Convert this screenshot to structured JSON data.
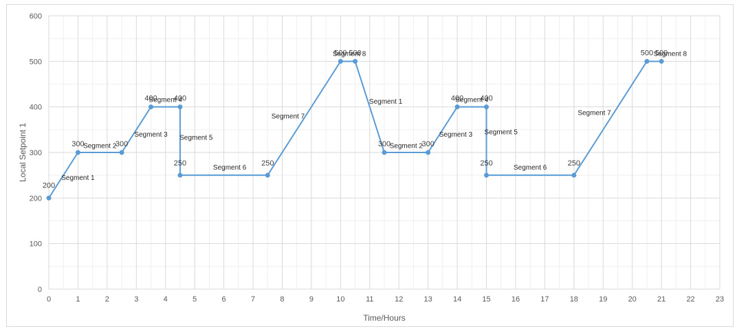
{
  "chart_data": {
    "type": "line",
    "xlabel": "Time/Hours",
    "ylabel": "Local Setpoint 1",
    "xlim": [
      0,
      23
    ],
    "ylim": [
      0,
      600
    ],
    "x_ticks": [
      0,
      1,
      2,
      3,
      4,
      5,
      6,
      7,
      8,
      9,
      10,
      11,
      12,
      13,
      14,
      15,
      16,
      17,
      18,
      19,
      20,
      21,
      22,
      23
    ],
    "y_ticks": [
      0,
      100,
      200,
      300,
      400,
      500,
      600
    ],
    "grid": true,
    "minor_grid": true,
    "colors": {
      "line": "#5b9bd5",
      "grid_major": "#d9d9d9",
      "grid_minor": "#efefef",
      "text": "#595959"
    },
    "series": [
      {
        "x": [
          0,
          1,
          2.5,
          3.5,
          4.5,
          4.5,
          7.5,
          10,
          10.5,
          11.5,
          13,
          14,
          15,
          15,
          18,
          20.5,
          21
        ],
        "y": [
          200,
          300,
          300,
          400,
          400,
          250,
          250,
          500,
          500,
          300,
          300,
          400,
          400,
          250,
          250,
          500,
          500
        ]
      }
    ],
    "data_labels": [
      {
        "x": 0,
        "y": 200,
        "text": "200"
      },
      {
        "x": 1,
        "y": 300,
        "text": "300"
      },
      {
        "x": 2.5,
        "y": 300,
        "text": "300"
      },
      {
        "x": 3.5,
        "y": 400,
        "text": "400"
      },
      {
        "x": 4.5,
        "y": 400,
        "text": "400"
      },
      {
        "x": 4.5,
        "y": 250,
        "text": "250"
      },
      {
        "x": 7.5,
        "y": 250,
        "text": "250"
      },
      {
        "x": 10,
        "y": 500,
        "text": "500"
      },
      {
        "x": 10.5,
        "y": 500,
        "text": "500"
      },
      {
        "x": 11.5,
        "y": 300,
        "text": "300"
      },
      {
        "x": 13,
        "y": 300,
        "text": "300"
      },
      {
        "x": 14,
        "y": 400,
        "text": "400"
      },
      {
        "x": 15,
        "y": 400,
        "text": "400"
      },
      {
        "x": 15,
        "y": 250,
        "text": "250"
      },
      {
        "x": 18,
        "y": 250,
        "text": "250"
      },
      {
        "x": 20.5,
        "y": 500,
        "text": "500"
      },
      {
        "x": 21,
        "y": 500,
        "text": "500"
      }
    ],
    "segment_labels": [
      {
        "text": "Segment 1",
        "x": 1.0,
        "y": 240
      },
      {
        "text": "Segment 2",
        "x": 1.75,
        "y": 310
      },
      {
        "text": "Segment 3",
        "x": 3.5,
        "y": 335
      },
      {
        "text": "Segment 4",
        "x": 4.0,
        "y": 411
      },
      {
        "text": "Segment 5",
        "x": 5.05,
        "y": 328
      },
      {
        "text": "Segment 6",
        "x": 6.2,
        "y": 262
      },
      {
        "text": "Segment 7",
        "x": 8.2,
        "y": 375
      },
      {
        "text": "Segment 8",
        "x": 10.3,
        "y": 512
      },
      {
        "text": "Segment 1",
        "x": 11.55,
        "y": 407
      },
      {
        "text": "Segment 2",
        "x": 12.25,
        "y": 310
      },
      {
        "text": "Segment 3",
        "x": 13.95,
        "y": 335
      },
      {
        "text": "Segment 4",
        "x": 14.5,
        "y": 411
      },
      {
        "text": "Segment 5",
        "x": 15.5,
        "y": 340
      },
      {
        "text": "Segment 6",
        "x": 16.5,
        "y": 262
      },
      {
        "text": "Segment 7",
        "x": 18.7,
        "y": 382
      },
      {
        "text": "Segment 8",
        "x": 21.3,
        "y": 512
      }
    ]
  }
}
